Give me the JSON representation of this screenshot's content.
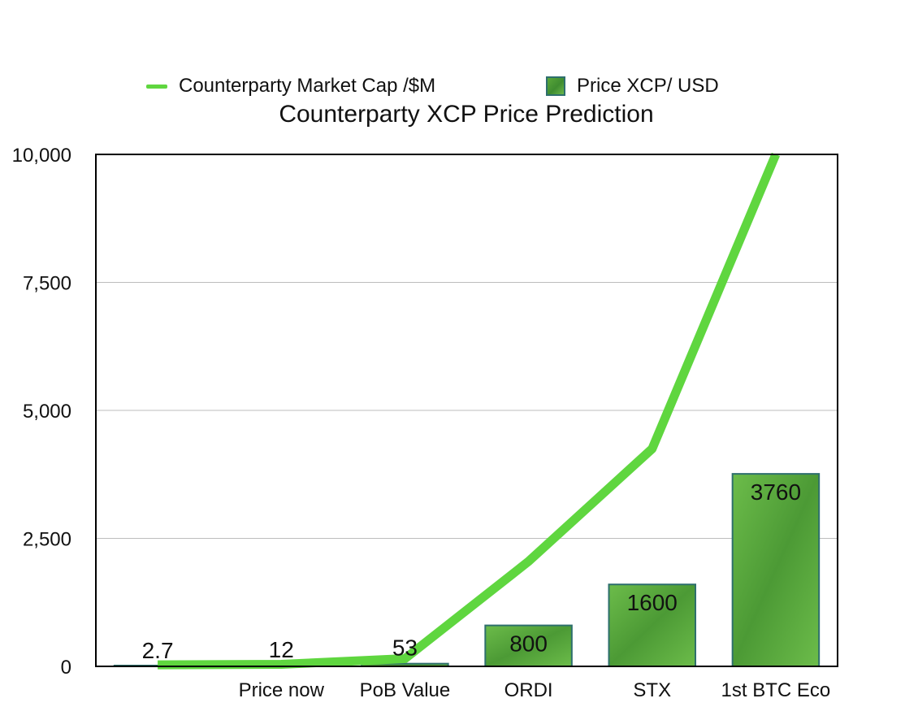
{
  "colors": {
    "line": "#5fd63f",
    "bar_fill": "#4c9a35",
    "bar_fill_light": "#6cbc4a",
    "bar_border": "#2e6f6d",
    "grid": "#bdbdbd",
    "axis": "#000000"
  },
  "chart_data": {
    "type": "bar",
    "title": "Counterparty XCP Price Prediction",
    "categories": [
      "",
      "Price now",
      "PoB Value",
      "ORDI",
      "STX",
      "1st BTC Eco"
    ],
    "ylim": [
      0,
      10000
    ],
    "yticks": [
      0,
      2500,
      5000,
      7500,
      10000
    ],
    "ytick_labels": [
      "0",
      "2,500",
      "5,000",
      "7,500",
      "10,000"
    ],
    "grid": true,
    "legend_position": "top",
    "series": [
      {
        "name": "Counterparty Market Cap /$M",
        "type": "line",
        "values": [
          30,
          40,
          150,
          2050,
          4250,
          10000
        ]
      },
      {
        "name": "Price XCP/ USD",
        "type": "bar",
        "values": [
          2.7,
          12,
          53,
          800,
          1600,
          3760
        ],
        "data_labels": [
          "2.7",
          "12",
          "53",
          "800",
          "1600",
          "3760"
        ]
      }
    ]
  }
}
